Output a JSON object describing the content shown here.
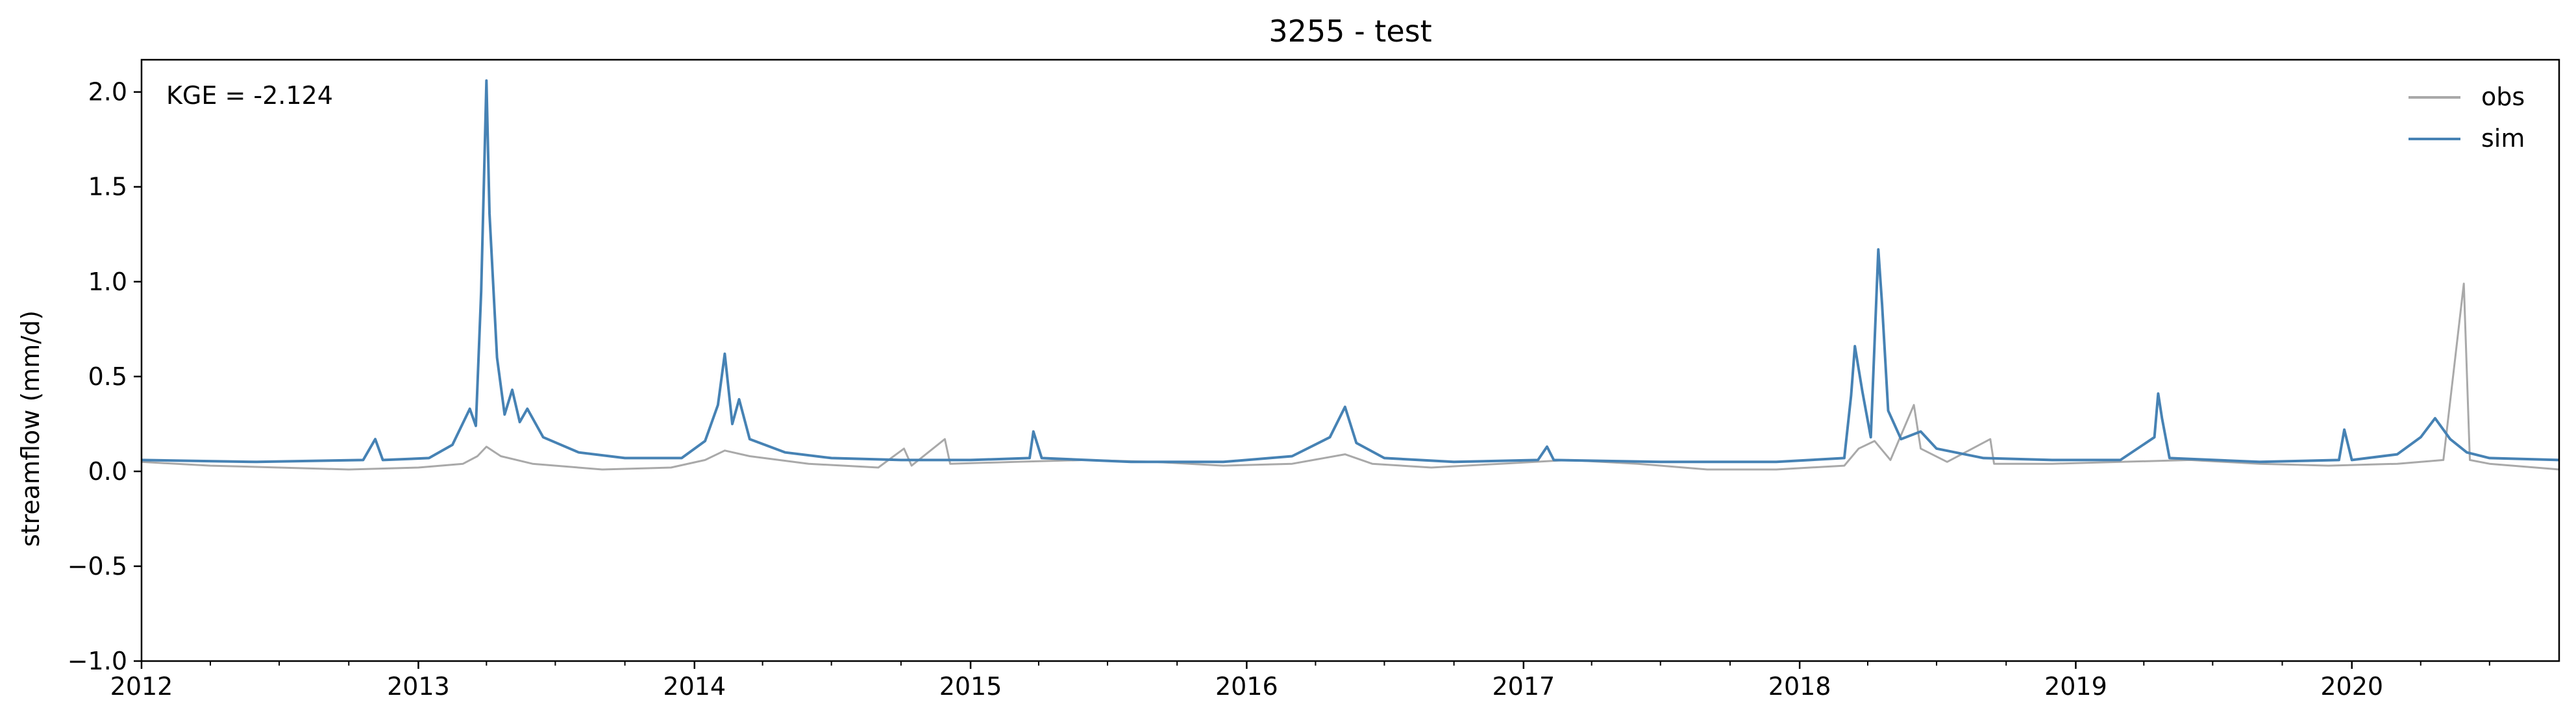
{
  "chart_data": {
    "type": "line",
    "title": "3255 - test",
    "xlabel": "",
    "ylabel": "streamflow (mm/d)",
    "xlim": [
      "2012-01-01",
      "2020-10-01"
    ],
    "ylim": [
      -1.0,
      2.17
    ],
    "x_ticks": [
      "2012",
      "2013",
      "2014",
      "2015",
      "2016",
      "2017",
      "2018",
      "2019",
      "2020"
    ],
    "y_ticks": [
      -1.0,
      -0.5,
      0.0,
      0.5,
      1.0,
      1.5,
      2.0
    ],
    "y_tick_labels": [
      "−1.0",
      "−0.5",
      "0.0",
      "0.5",
      "1.0",
      "1.5",
      "2.0"
    ],
    "grid": false,
    "legend_position": "top-right",
    "annotation": "KGE = -2.124",
    "series": [
      {
        "name": "obs",
        "color": "#a9a9a9",
        "points": [
          [
            "2012-01-01",
            0.05
          ],
          [
            "2012-04-01",
            0.03
          ],
          [
            "2012-07-01",
            0.02
          ],
          [
            "2012-10-01",
            0.01
          ],
          [
            "2013-01-01",
            0.02
          ],
          [
            "2013-03-01",
            0.04
          ],
          [
            "2013-03-20",
            0.08
          ],
          [
            "2013-04-01",
            0.13
          ],
          [
            "2013-04-20",
            0.08
          ],
          [
            "2013-06-01",
            0.04
          ],
          [
            "2013-09-01",
            0.01
          ],
          [
            "2013-12-01",
            0.02
          ],
          [
            "2014-01-15",
            0.06
          ],
          [
            "2014-02-10",
            0.11
          ],
          [
            "2014-03-15",
            0.08
          ],
          [
            "2014-06-01",
            0.04
          ],
          [
            "2014-09-01",
            0.02
          ],
          [
            "2014-10-05",
            0.12
          ],
          [
            "2014-10-15",
            0.03
          ],
          [
            "2014-11-28",
            0.17
          ],
          [
            "2014-12-05",
            0.04
          ],
          [
            "2015-03-01",
            0.05
          ],
          [
            "2015-06-01",
            0.06
          ],
          [
            "2015-09-01",
            0.05
          ],
          [
            "2015-12-01",
            0.03
          ],
          [
            "2016-03-01",
            0.04
          ],
          [
            "2016-05-10",
            0.09
          ],
          [
            "2016-06-15",
            0.04
          ],
          [
            "2016-09-01",
            0.02
          ],
          [
            "2016-12-01",
            0.04
          ],
          [
            "2017-03-01",
            0.06
          ],
          [
            "2017-06-01",
            0.04
          ],
          [
            "2017-09-01",
            0.01
          ],
          [
            "2017-12-01",
            0.01
          ],
          [
            "2018-03-01",
            0.03
          ],
          [
            "2018-03-20",
            0.12
          ],
          [
            "2018-04-10",
            0.16
          ],
          [
            "2018-05-01",
            0.06
          ],
          [
            "2018-06-01",
            0.35
          ],
          [
            "2018-06-10",
            0.12
          ],
          [
            "2018-07-15",
            0.05
          ],
          [
            "2018-09-10",
            0.17
          ],
          [
            "2018-09-15",
            0.04
          ],
          [
            "2018-12-01",
            0.04
          ],
          [
            "2019-03-01",
            0.05
          ],
          [
            "2019-06-01",
            0.06
          ],
          [
            "2019-09-01",
            0.04
          ],
          [
            "2019-12-01",
            0.03
          ],
          [
            "2020-03-01",
            0.04
          ],
          [
            "2020-05-01",
            0.06
          ],
          [
            "2020-05-28",
            0.99
          ],
          [
            "2020-06-05",
            0.06
          ],
          [
            "2020-07-01",
            0.04
          ],
          [
            "2020-10-01",
            0.01
          ]
        ]
      },
      {
        "name": "sim",
        "color": "#4682b4",
        "points": [
          [
            "2012-01-01",
            0.06
          ],
          [
            "2012-06-01",
            0.05
          ],
          [
            "2012-10-20",
            0.06
          ],
          [
            "2012-11-05",
            0.17
          ],
          [
            "2012-11-15",
            0.06
          ],
          [
            "2013-01-15",
            0.07
          ],
          [
            "2013-02-15",
            0.14
          ],
          [
            "2013-03-10",
            0.33
          ],
          [
            "2013-03-18",
            0.24
          ],
          [
            "2013-03-25",
            0.95
          ],
          [
            "2013-04-01",
            2.06
          ],
          [
            "2013-04-05",
            1.36
          ],
          [
            "2013-04-15",
            0.6
          ],
          [
            "2013-04-25",
            0.3
          ],
          [
            "2013-05-05",
            0.43
          ],
          [
            "2013-05-15",
            0.26
          ],
          [
            "2013-05-25",
            0.33
          ],
          [
            "2013-06-15",
            0.18
          ],
          [
            "2013-08-01",
            0.1
          ],
          [
            "2013-10-01",
            0.07
          ],
          [
            "2013-12-15",
            0.07
          ],
          [
            "2014-01-15",
            0.16
          ],
          [
            "2014-02-01",
            0.35
          ],
          [
            "2014-02-10",
            0.62
          ],
          [
            "2014-02-20",
            0.25
          ],
          [
            "2014-03-01",
            0.38
          ],
          [
            "2014-03-15",
            0.17
          ],
          [
            "2014-05-01",
            0.1
          ],
          [
            "2014-07-01",
            0.07
          ],
          [
            "2014-10-01",
            0.06
          ],
          [
            "2015-01-01",
            0.06
          ],
          [
            "2015-03-20",
            0.07
          ],
          [
            "2015-03-25",
            0.21
          ],
          [
            "2015-04-05",
            0.07
          ],
          [
            "2015-08-01",
            0.05
          ],
          [
            "2015-12-01",
            0.05
          ],
          [
            "2016-03-01",
            0.08
          ],
          [
            "2016-04-20",
            0.18
          ],
          [
            "2016-05-10",
            0.34
          ],
          [
            "2016-05-25",
            0.15
          ],
          [
            "2016-07-01",
            0.07
          ],
          [
            "2016-10-01",
            0.05
          ],
          [
            "2017-01-20",
            0.06
          ],
          [
            "2017-02-01",
            0.13
          ],
          [
            "2017-02-10",
            0.06
          ],
          [
            "2017-07-01",
            0.05
          ],
          [
            "2017-12-01",
            0.05
          ],
          [
            "2018-03-01",
            0.07
          ],
          [
            "2018-03-10",
            0.4
          ],
          [
            "2018-03-15",
            0.66
          ],
          [
            "2018-03-25",
            0.42
          ],
          [
            "2018-04-05",
            0.18
          ],
          [
            "2018-04-15",
            1.17
          ],
          [
            "2018-04-20",
            0.88
          ],
          [
            "2018-04-28",
            0.32
          ],
          [
            "2018-05-15",
            0.17
          ],
          [
            "2018-06-10",
            0.21
          ],
          [
            "2018-07-01",
            0.12
          ],
          [
            "2018-09-01",
            0.07
          ],
          [
            "2018-12-01",
            0.06
          ],
          [
            "2019-03-01",
            0.06
          ],
          [
            "2019-04-15",
            0.18
          ],
          [
            "2019-04-20",
            0.41
          ],
          [
            "2019-04-25",
            0.28
          ],
          [
            "2019-05-05",
            0.07
          ],
          [
            "2019-09-01",
            0.05
          ],
          [
            "2019-12-15",
            0.06
          ],
          [
            "2019-12-22",
            0.22
          ],
          [
            "2020-01-01",
            0.06
          ],
          [
            "2020-03-01",
            0.09
          ],
          [
            "2020-04-01",
            0.18
          ],
          [
            "2020-04-20",
            0.28
          ],
          [
            "2020-05-10",
            0.17
          ],
          [
            "2020-06-01",
            0.1
          ],
          [
            "2020-07-01",
            0.07
          ],
          [
            "2020-10-01",
            0.06
          ]
        ]
      }
    ]
  }
}
